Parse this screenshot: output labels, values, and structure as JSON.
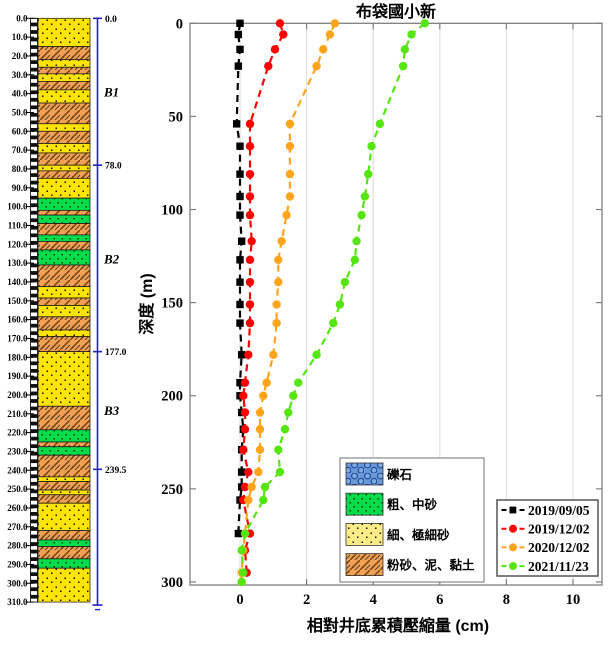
{
  "chart_data": {
    "type": "line",
    "title": "布袋國小新",
    "xlabel": "相對井底累積壓縮量 (cm)",
    "ylabel": "深度 (m)",
    "orientation": "depth-profile, y-axis is depth increasing downward",
    "xlim": [
      -1.5,
      10.9
    ],
    "ylim_depth_m": [
      0,
      302
    ],
    "x_ticks": [
      "0",
      "2",
      "4",
      "6",
      "8",
      "10"
    ],
    "y_ticks": [
      "0",
      "50",
      "100",
      "150",
      "200",
      "250",
      "300"
    ],
    "grid": "vertical gridlines at x ticks only",
    "legend_position": "lower right",
    "depths_m": [
      0,
      6,
      14,
      23,
      54,
      66,
      81,
      93,
      103,
      117,
      127,
      139,
      151,
      161,
      178,
      193,
      200,
      209,
      218,
      229,
      241,
      249,
      256,
      274,
      283,
      295,
      300
    ],
    "series": [
      {
        "name": "2019/09/05",
        "color": "#000000",
        "marker": "square",
        "values": [
          0,
          -0.05,
          0,
          -0.05,
          -0.1,
          0,
          0,
          0,
          0,
          0.05,
          0,
          0,
          0,
          0,
          0.05,
          0,
          0,
          0.05,
          0.1,
          0.05,
          0.05,
          0.05,
          0,
          -0.05,
          null,
          null,
          null
        ]
      },
      {
        "name": "2019/12/02",
        "color": "#FF0000",
        "marker": "circle",
        "values": [
          1.2,
          1.3,
          1.05,
          0.85,
          0.3,
          0.3,
          0.3,
          0.3,
          0.3,
          0.35,
          0.3,
          0.3,
          0.3,
          0.3,
          0.25,
          0.15,
          0.1,
          0.15,
          0.15,
          0.1,
          0.25,
          0.15,
          0.1,
          0.3,
          0.15,
          0.2,
          null
        ]
      },
      {
        "name": "2020/12/02",
        "color": "#FFA41B",
        "marker": "circle",
        "values": [
          2.85,
          2.7,
          2.5,
          2.3,
          1.5,
          1.5,
          1.5,
          1.5,
          1.4,
          1.25,
          1.15,
          1.15,
          1.1,
          1.1,
          1.0,
          0.8,
          0.7,
          0.6,
          0.6,
          0.6,
          0.55,
          0.35,
          0.25,
          0.15,
          0.1,
          0.05,
          0.05
        ]
      },
      {
        "name": "2021/11/23",
        "color": "#55E612",
        "marker": "circle",
        "values": [
          5.55,
          5.15,
          4.95,
          4.9,
          4.2,
          3.95,
          3.85,
          3.75,
          3.65,
          3.5,
          3.45,
          3.15,
          3.0,
          2.8,
          2.3,
          1.75,
          1.6,
          1.45,
          1.35,
          1.15,
          1.2,
          0.75,
          0.7,
          0.15,
          0.05,
          0.1,
          0.05
        ]
      }
    ]
  },
  "soil_legend": {
    "items": [
      {
        "label": "礫石",
        "type": "gravel",
        "color": "#6899D8"
      },
      {
        "label": "粗、中砂",
        "type": "coarse",
        "color": "#00DC4B"
      },
      {
        "label": "細、極細砂",
        "type": "fine_light",
        "color": "#FFEC86"
      },
      {
        "label": "粉砂、泥、黏土",
        "type": "silt",
        "color": "#F2A155"
      }
    ]
  },
  "strat_column": {
    "depth_labels": [
      "0.0",
      "10.0",
      "20.0",
      "30.0",
      "40.0",
      "50.0",
      "60.0",
      "70.0",
      "80.0",
      "90.0",
      "100.0",
      "110.0",
      "120.0",
      "130.0",
      "140.0",
      "150.0",
      "160.0",
      "170.0",
      "180.0",
      "190.0",
      "200.0",
      "210.0",
      "220.0",
      "230.0",
      "240.0",
      "250.0",
      "260.0",
      "270.0",
      "280.0",
      "290.0",
      "300.0",
      "310.0"
    ],
    "column_depth_range_m": [
      0,
      310
    ],
    "layers_from_to_type": [
      [
        0,
        15,
        "fine"
      ],
      [
        15,
        22,
        "silt"
      ],
      [
        22,
        26,
        "fine"
      ],
      [
        26,
        29.5,
        "silt"
      ],
      [
        29.5,
        33.5,
        "fine"
      ],
      [
        33.5,
        38,
        "silt"
      ],
      [
        38,
        45,
        "fine"
      ],
      [
        45,
        56,
        "silt"
      ],
      [
        56,
        60,
        "fine"
      ],
      [
        60,
        66.5,
        "silt"
      ],
      [
        66.5,
        71.5,
        "fine"
      ],
      [
        71.5,
        78,
        "silt"
      ],
      [
        78,
        81,
        "fine"
      ],
      [
        81,
        85,
        "silt"
      ],
      [
        85,
        95.5,
        "fine"
      ],
      [
        95.5,
        102,
        "coarse"
      ],
      [
        102,
        104.5,
        "silt"
      ],
      [
        104.5,
        109,
        "coarse"
      ],
      [
        109,
        115,
        "silt"
      ],
      [
        115,
        118.5,
        "coarse"
      ],
      [
        118.5,
        123,
        "silt"
      ],
      [
        123,
        131,
        "coarse"
      ],
      [
        131,
        142.5,
        "silt"
      ],
      [
        142.5,
        148.5,
        "fine"
      ],
      [
        148.5,
        152.5,
        "silt"
      ],
      [
        152.5,
        158.5,
        "fine"
      ],
      [
        158.5,
        165.5,
        "silt"
      ],
      [
        165.5,
        169,
        "fine"
      ],
      [
        169,
        177,
        "silt"
      ],
      [
        177,
        206,
        "fine"
      ],
      [
        206,
        218.5,
        "silt"
      ],
      [
        218.5,
        225,
        "coarse"
      ],
      [
        225,
        227.5,
        "silt"
      ],
      [
        227.5,
        232,
        "coarse"
      ],
      [
        232,
        243.5,
        "silt"
      ],
      [
        243.5,
        246,
        "fine"
      ],
      [
        246,
        250.5,
        "silt"
      ],
      [
        250.5,
        253,
        "fine"
      ],
      [
        253,
        257.5,
        "silt"
      ],
      [
        257.5,
        272,
        "fine"
      ],
      [
        272,
        277,
        "silt"
      ],
      [
        277,
        280.5,
        "coarse"
      ],
      [
        280.5,
        287,
        "silt"
      ],
      [
        287,
        292,
        "coarse"
      ],
      [
        292,
        310,
        "fine"
      ]
    ],
    "zones": [
      {
        "label": "B1",
        "mid_depth": 39
      },
      {
        "label": "B2",
        "mid_depth": 127.5
      },
      {
        "label": "B3",
        "mid_depth": 208
      }
    ],
    "zone_boundaries": [
      {
        "label": "0.0",
        "depth": 0
      },
      {
        "label": "78.0",
        "depth": 78
      },
      {
        "label": "177.0",
        "depth": 177
      },
      {
        "label": "239.5",
        "depth": 239.5
      }
    ],
    "annotation_color": "#2222CC",
    "layer_colors": {
      "fine": "#FFE400",
      "coarse": "#00DC4B",
      "silt": "#F1A055",
      "gravel": "#6899D8"
    }
  }
}
